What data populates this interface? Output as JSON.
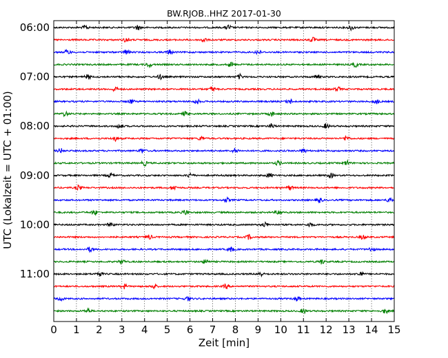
{
  "chart_data": {
    "type": "line",
    "title": "BW.RJOB..HHZ 2017-01-30",
    "xlabel": "Zeit  [min]",
    "ylabel": "UTC (Lokalzeit = UTC + 01:00)",
    "xlim": [
      0,
      15
    ],
    "x_ticks": [
      "0",
      "1",
      "2",
      "3",
      "4",
      "5",
      "6",
      "7",
      "8",
      "9",
      "10",
      "11",
      "12",
      "13",
      "14",
      "15"
    ],
    "y_ticks": [
      {
        "label": "06:00",
        "trace": 0
      },
      {
        "label": "07:00",
        "trace": 4
      },
      {
        "label": "08:00",
        "trace": 8
      },
      {
        "label": "09:00",
        "trace": 12
      },
      {
        "label": "10:00",
        "trace": 16
      },
      {
        "label": "11:00",
        "trace": 20
      }
    ],
    "trace_interval_min": 15,
    "trace_count": 24,
    "first_trace_start": "06:00",
    "colors": [
      "#000000",
      "#ff0000",
      "#0000ff",
      "#007f00"
    ],
    "grid_x": "dotted",
    "traces": [
      {
        "start": "06:00",
        "color": "#000000",
        "bursts": [
          1.4,
          3.7,
          7.7,
          13.1
        ]
      },
      {
        "start": "06:15",
        "color": "#ff0000",
        "bursts": [
          3.2,
          6.6,
          11.4
        ]
      },
      {
        "start": "06:30",
        "color": "#0000ff",
        "bursts": [
          0.6,
          3.2,
          5.1,
          9.0
        ]
      },
      {
        "start": "06:45",
        "color": "#007f00",
        "bursts": [
          4.2,
          7.8,
          13.3
        ]
      },
      {
        "start": "07:00",
        "color": "#000000",
        "bursts": [
          1.5,
          4.7,
          8.2,
          11.6
        ]
      },
      {
        "start": "07:15",
        "color": "#ff0000",
        "bursts": [
          2.7,
          7.0,
          12.5
        ]
      },
      {
        "start": "07:30",
        "color": "#0000ff",
        "bursts": [
          3.4,
          6.3,
          10.4,
          14.2
        ]
      },
      {
        "start": "07:45",
        "color": "#007f00",
        "bursts": [
          0.5,
          5.8,
          9.6
        ]
      },
      {
        "start": "08:00",
        "color": "#000000",
        "bursts": [
          2.9,
          9.6,
          12.0
        ]
      },
      {
        "start": "08:15",
        "color": "#ff0000",
        "bursts": [
          2.7,
          6.5,
          12.9
        ]
      },
      {
        "start": "08:30",
        "color": "#0000ff",
        "bursts": [
          0.3,
          3.9,
          8.0,
          11.0
        ]
      },
      {
        "start": "08:45",
        "color": "#007f00",
        "bursts": [
          4.0,
          9.9,
          12.9
        ]
      },
      {
        "start": "09:00",
        "color": "#000000",
        "bursts": [
          2.5,
          6.0,
          9.5,
          12.2
        ]
      },
      {
        "start": "09:15",
        "color": "#ff0000",
        "bursts": [
          1.1,
          5.3,
          10.4
        ]
      },
      {
        "start": "09:30",
        "color": "#0000ff",
        "bursts": [
          7.6,
          11.7,
          14.8
        ]
      },
      {
        "start": "09:45",
        "color": "#007f00",
        "bursts": [
          1.8,
          5.8,
          9.9
        ]
      },
      {
        "start": "10:00",
        "color": "#000000",
        "bursts": [
          2.5,
          9.3,
          11.3
        ]
      },
      {
        "start": "10:15",
        "color": "#ff0000",
        "bursts": [
          4.2,
          8.6,
          13.6
        ]
      },
      {
        "start": "10:30",
        "color": "#0000ff",
        "bursts": [
          1.6,
          7.8,
          14.0
        ]
      },
      {
        "start": "10:45",
        "color": "#007f00",
        "bursts": [
          3.0,
          6.7,
          11.8
        ]
      },
      {
        "start": "11:00",
        "color": "#000000",
        "bursts": [
          2.0,
          9.1,
          13.5
        ]
      },
      {
        "start": "11:15",
        "color": "#ff0000",
        "bursts": [
          3.1,
          4.4,
          7.6
        ]
      },
      {
        "start": "11:30",
        "color": "#0000ff",
        "bursts": [
          0.3,
          5.9,
          10.7
        ]
      },
      {
        "start": "11:45",
        "color": "#007f00",
        "bursts": [
          1.5,
          11.0,
          14.6
        ]
      }
    ]
  }
}
